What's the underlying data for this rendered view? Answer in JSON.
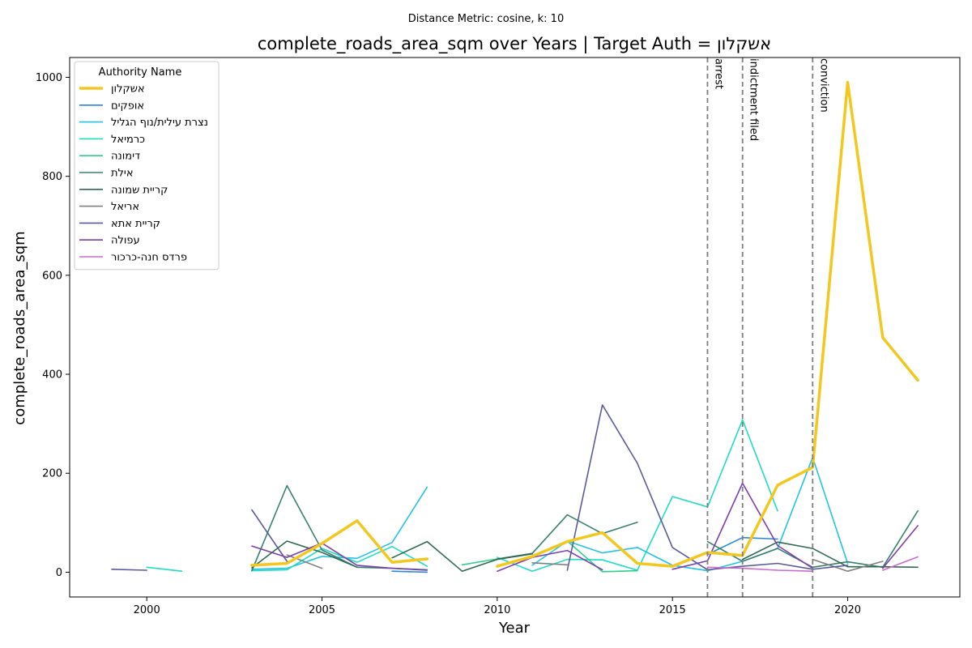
{
  "chart_data": {
    "type": "line",
    "suptitle": "Distance Metric: cosine, k: 10",
    "title": "complete_roads_area_sqm over Years | Target Auth = אשקלון",
    "xlabel": "Year",
    "ylabel": "complete_roads_area_sqm",
    "xlim": [
      1997.8,
      2023.2
    ],
    "ylim": [
      -50,
      1040
    ],
    "xticks": [
      2000,
      2005,
      2010,
      2015,
      2020
    ],
    "yticks": [
      0,
      200,
      400,
      600,
      800,
      1000
    ],
    "grid": false,
    "legend": {
      "title": "Authority Name",
      "placement": "top-left"
    },
    "events": [
      {
        "x": 2016,
        "label": "arrest"
      },
      {
        "x": 2017,
        "label": "indictment filed"
      },
      {
        "x": 2019,
        "label": "conviction"
      }
    ],
    "series": [
      {
        "name": "אשקלון",
        "color": "#f2c81e",
        "width": 3.5,
        "target": true,
        "segments": [
          [
            [
              2003,
              14
            ],
            [
              2004,
              18
            ],
            [
              2005,
              58
            ],
            [
              2006,
              104
            ],
            [
              2007,
              20
            ],
            [
              2008,
              27
            ]
          ],
          [
            [
              2010,
              12
            ],
            [
              2011,
              32
            ],
            [
              2012,
              62
            ],
            [
              2013,
              80
            ],
            [
              2014,
              18
            ],
            [
              2015,
              12
            ],
            [
              2016,
              40
            ],
            [
              2017,
              34
            ],
            [
              2018,
              176
            ],
            [
              2019,
              212
            ],
            [
              2020,
              990
            ],
            [
              2021,
              474
            ],
            [
              2022,
              388
            ]
          ]
        ]
      },
      {
        "name": "אופקים",
        "color": "#2a89d8",
        "width": 1.6,
        "segments": [
          [
            [
              2007,
              2
            ],
            [
              2008,
              0
            ]
          ],
          [
            [
              2016,
              36
            ],
            [
              2017,
              70
            ],
            [
              2018,
              67
            ]
          ]
        ]
      },
      {
        "name": "נצרת עילית/נוף הגליל",
        "color": "#22c3e6",
        "width": 1.6,
        "segments": [
          [
            [
              2003,
              6
            ],
            [
              2004,
              8
            ],
            [
              2005,
              32
            ],
            [
              2006,
              28
            ],
            [
              2007,
              60
            ],
            [
              2008,
              172
            ]
          ],
          [
            [
              2011,
              14
            ],
            [
              2012,
              63
            ],
            [
              2013,
              39
            ],
            [
              2014,
              50
            ],
            [
              2015,
              14
            ],
            [
              2016,
              3
            ],
            [
              2017,
              22
            ],
            [
              2018,
              48
            ],
            [
              2019,
              232
            ],
            [
              2020,
              18
            ]
          ]
        ]
      },
      {
        "name": "כרמיאל",
        "color": "#1fdcc4",
        "width": 1.6,
        "segments": [
          [
            [
              2000,
              10
            ],
            [
              2001,
              2
            ]
          ],
          [
            [
              2003,
              3
            ],
            [
              2004,
              5
            ],
            [
              2005,
              48
            ],
            [
              2006,
              20
            ],
            [
              2007,
              52
            ],
            [
              2008,
              12
            ]
          ],
          [
            [
              2010,
              30
            ],
            [
              2011,
              2
            ],
            [
              2012,
              26
            ],
            [
              2013,
              25
            ],
            [
              2014,
              4
            ],
            [
              2015,
              153
            ],
            [
              2016,
              132
            ],
            [
              2017,
              308
            ],
            [
              2018,
              124
            ]
          ]
        ]
      },
      {
        "name": "דימונה",
        "color": "#2ecf8e",
        "width": 1.6,
        "segments": [
          [
            [
              2009,
              15
            ],
            [
              2010,
              27
            ]
          ],
          [
            [
              2012,
              63
            ],
            [
              2013,
              1
            ],
            [
              2014,
              3
            ]
          ]
        ]
      },
      {
        "name": "אילת",
        "color": "#3a8070",
        "width": 1.6,
        "segments": [
          [
            [
              2003,
              3
            ],
            [
              2004,
              175
            ],
            [
              2005,
              45
            ],
            [
              2006,
              10
            ],
            [
              2007,
              8
            ],
            [
              2008,
              5
            ]
          ],
          [
            [
              2010,
              27
            ],
            [
              2011,
              38
            ],
            [
              2012,
              116
            ],
            [
              2013,
              78
            ],
            [
              2014,
              101
            ]
          ],
          [
            [
              2016,
              62
            ],
            [
              2017,
              22
            ],
            [
              2018,
              48
            ],
            [
              2019,
              10
            ],
            [
              2020,
              21
            ],
            [
              2021,
              10
            ],
            [
              2022,
              124
            ]
          ]
        ]
      },
      {
        "name": "קריית שמונה",
        "color": "#2f6b50",
        "width": 1.6,
        "segments": [
          [
            [
              2003,
              9
            ],
            [
              2004,
              63
            ],
            [
              2005,
              40
            ],
            [
              2006,
              10
            ]
          ],
          [
            [
              2007,
              29
            ],
            [
              2008,
              62
            ],
            [
              2009,
              2
            ],
            [
              2010,
              26
            ],
            [
              2011,
              37
            ]
          ],
          [
            [
              2017,
              26
            ],
            [
              2018,
              61
            ],
            [
              2019,
              48
            ],
            [
              2020,
              11
            ],
            [
              2021,
              11
            ],
            [
              2022,
              10
            ]
          ]
        ]
      },
      {
        "name": "אריאל",
        "color": "#808080",
        "width": 1.6,
        "segments": [
          [
            [
              2004,
              35
            ],
            [
              2005,
              8
            ]
          ],
          [
            [
              2011,
              19
            ],
            [
              2012,
              15
            ]
          ],
          [
            [
              2019,
              26
            ],
            [
              2020,
              2
            ],
            [
              2021,
              22
            ]
          ]
        ]
      },
      {
        "name": "קריית אתא",
        "color": "#5b5a9e",
        "width": 1.6,
        "segments": [
          [
            [
              1999,
              6
            ],
            [
              2000,
              4
            ]
          ],
          [
            [
              2003,
              126
            ],
            [
              2004,
              22
            ]
          ],
          [
            [
              2012,
              4
            ],
            [
              2013,
              338
            ],
            [
              2014,
              220
            ],
            [
              2015,
              50
            ],
            [
              2016,
              5
            ],
            [
              2017,
              12
            ],
            [
              2018,
              18
            ],
            [
              2019,
              6
            ],
            [
              2020,
              14
            ]
          ]
        ]
      },
      {
        "name": "עפולה",
        "color": "#7b3fae",
        "width": 1.6,
        "segments": [
          [
            [
              2003,
              53
            ],
            [
              2004,
              30
            ],
            [
              2005,
              59
            ],
            [
              2006,
              14
            ],
            [
              2007,
              8
            ],
            [
              2008,
              4
            ]
          ],
          [
            [
              2010,
              2
            ],
            [
              2011,
              30
            ],
            [
              2012,
              44
            ],
            [
              2013,
              5
            ]
          ],
          [
            [
              2015,
              6
            ],
            [
              2016,
              23
            ],
            [
              2017,
              180
            ],
            [
              2018,
              54
            ],
            [
              2019,
              8
            ]
          ],
          [
            [
              2021,
              8
            ],
            [
              2022,
              94
            ]
          ]
        ]
      },
      {
        "name": "פרדס חנה-כרכור",
        "color": "#c96bd0",
        "width": 1.6,
        "segments": [
          [
            [
              2016,
              10
            ],
            [
              2017,
              8
            ],
            [
              2018,
              4
            ],
            [
              2019,
              2
            ]
          ],
          [
            [
              2021,
              4
            ],
            [
              2022,
              31
            ]
          ]
        ]
      }
    ]
  }
}
